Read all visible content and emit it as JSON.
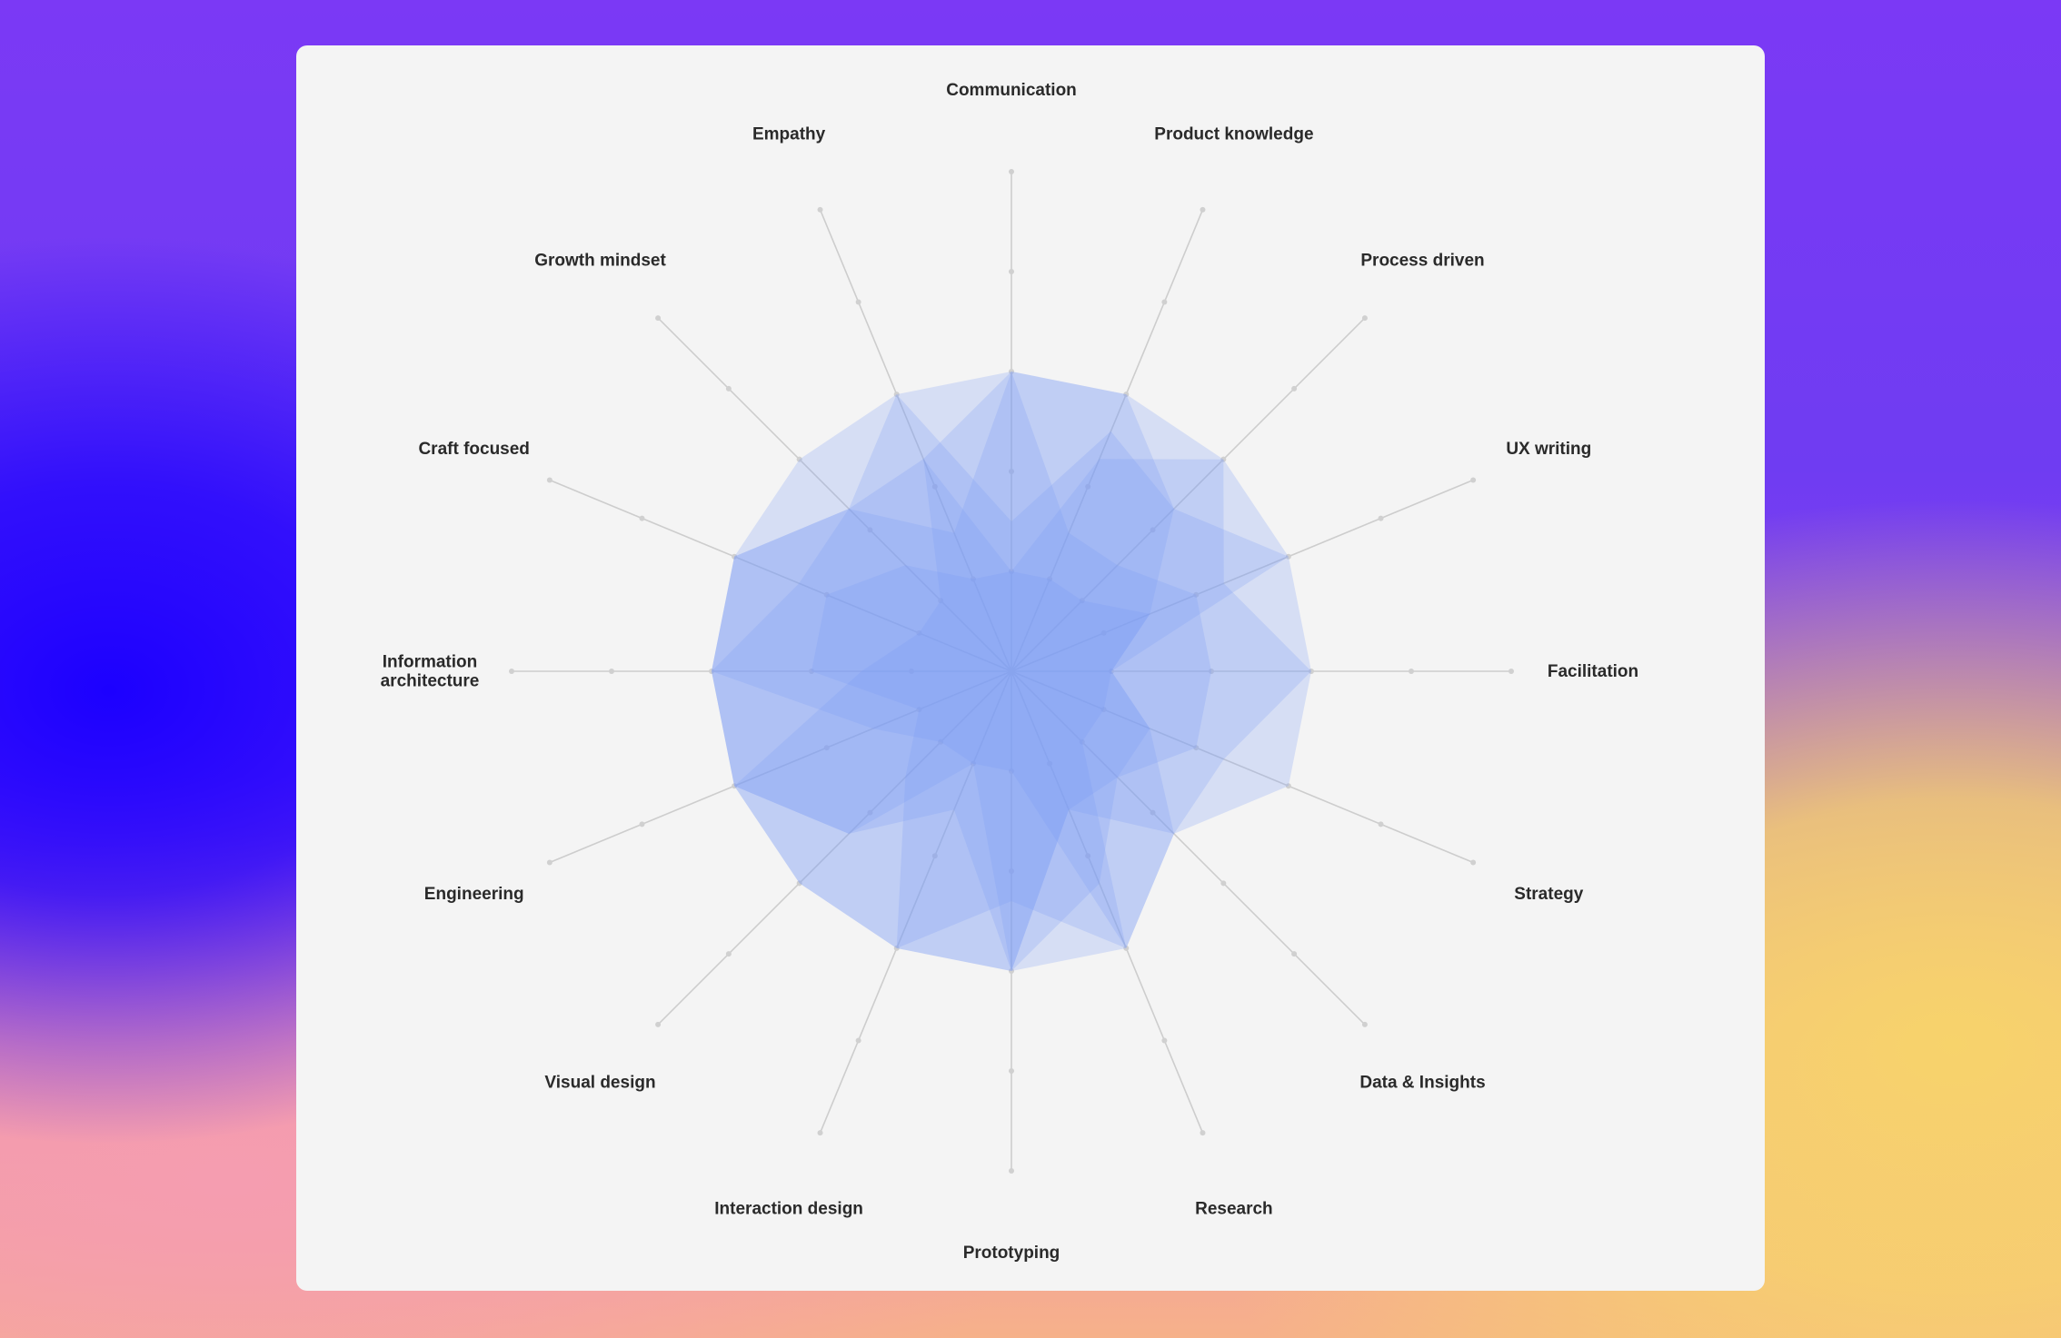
{
  "chart_data": {
    "type": "radar",
    "title": "",
    "axes": [
      "Communication",
      "Product knowledge",
      "Process driven",
      "UX writing",
      "Facilitation",
      "Strategy",
      "Data & Insights",
      "Research",
      "Prototyping",
      "Interaction design",
      "Visual design",
      "Engineering",
      "Information architecture",
      "Craft focused",
      "Growth mindset",
      "Empathy"
    ],
    "axis_label_lines": {
      "Information architecture": [
        "Information",
        "architecture"
      ]
    },
    "scale": {
      "min": 0,
      "max": 5,
      "gridlines": false,
      "tick_markers": [
        1,
        2,
        3,
        4,
        5
      ]
    },
    "series": [
      {
        "values": [
          1.5,
          2.6,
          2.3,
          3.0,
          3.0,
          3.0,
          2.3,
          1.5,
          3.0,
          1.5,
          2.3,
          3.0,
          3.0,
          3.0,
          3.0,
          3.0
        ]
      },
      {
        "values": [
          3.0,
          3.0,
          2.3,
          1.5,
          1.0,
          1.5,
          1.5,
          2.3,
          3.0,
          3.0,
          3.0,
          3.0,
          3.0,
          3.0,
          2.3,
          2.3
        ]
      },
      {
        "values": [
          3.0,
          1.5,
          1.5,
          2.0,
          2.0,
          2.0,
          1.5,
          1.5,
          3.0,
          1.0,
          1.0,
          1.5,
          3.0,
          3.0,
          2.3,
          1.5
        ]
      },
      {
        "values": [
          1.0,
          1.0,
          1.0,
          1.5,
          1.0,
          1.0,
          1.0,
          3.0,
          3.0,
          3.0,
          1.5,
          1.0,
          2.0,
          2.0,
          1.5,
          1.0
        ]
      },
      {
        "values": [
          3.0,
          3.0,
          3.0,
          2.3,
          3.0,
          2.3,
          2.3,
          3.0,
          2.3,
          3.0,
          3.0,
          3.0,
          3.0,
          2.3,
          2.3,
          3.0
        ]
      },
      {
        "values": [
          1.0,
          2.3,
          3.0,
          3.0,
          1.0,
          1.5,
          2.3,
          3.0,
          1.0,
          1.0,
          2.3,
          3.0,
          1.5,
          1.0,
          1.0,
          2.3
        ]
      }
    ],
    "colors": {
      "fill": "#7a9af6",
      "fill_opacity": 0.24,
      "spoke": "#cdcdcd",
      "marker": "#d0d0d0"
    },
    "legend": "none"
  }
}
